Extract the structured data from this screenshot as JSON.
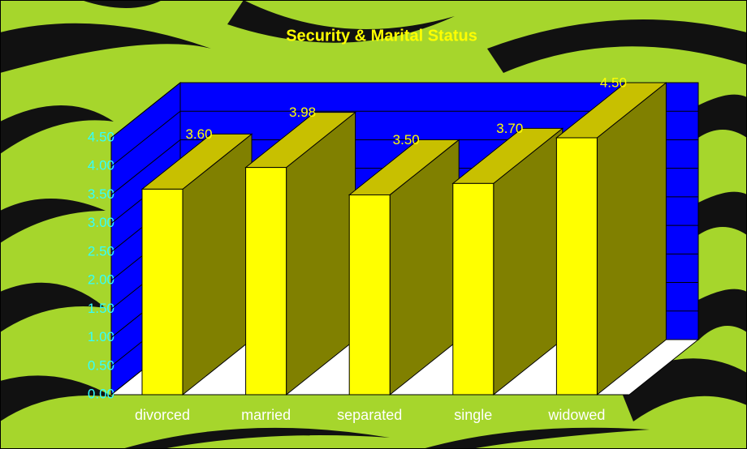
{
  "chart_data": {
    "type": "bar3d",
    "title": "Security & Marital Status",
    "categories": [
      "divorced",
      "married",
      "separated",
      "single",
      "widowed"
    ],
    "values": [
      3.6,
      3.98,
      3.5,
      3.7,
      4.5
    ],
    "value_labels": [
      "3.60",
      "3.98",
      "3.50",
      "3.70",
      "4.50"
    ],
    "color": "#ffff00",
    "ylim": [
      0,
      4.5
    ],
    "yticks": [
      {
        "value": 0,
        "label": "0.00"
      },
      {
        "value": 0.5,
        "label": "0.50"
      },
      {
        "value": 1,
        "label": "1.00"
      },
      {
        "value": 1.5,
        "label": "1.50"
      },
      {
        "value": 2,
        "label": "2.00"
      },
      {
        "value": 2.5,
        "label": "2.50"
      },
      {
        "value": 3,
        "label": "3.00"
      },
      {
        "value": 3.5,
        "label": "3.50"
      },
      {
        "value": 4,
        "label": "4.00"
      },
      {
        "value": 4.5,
        "label": "4.50"
      }
    ],
    "grid": true
  }
}
